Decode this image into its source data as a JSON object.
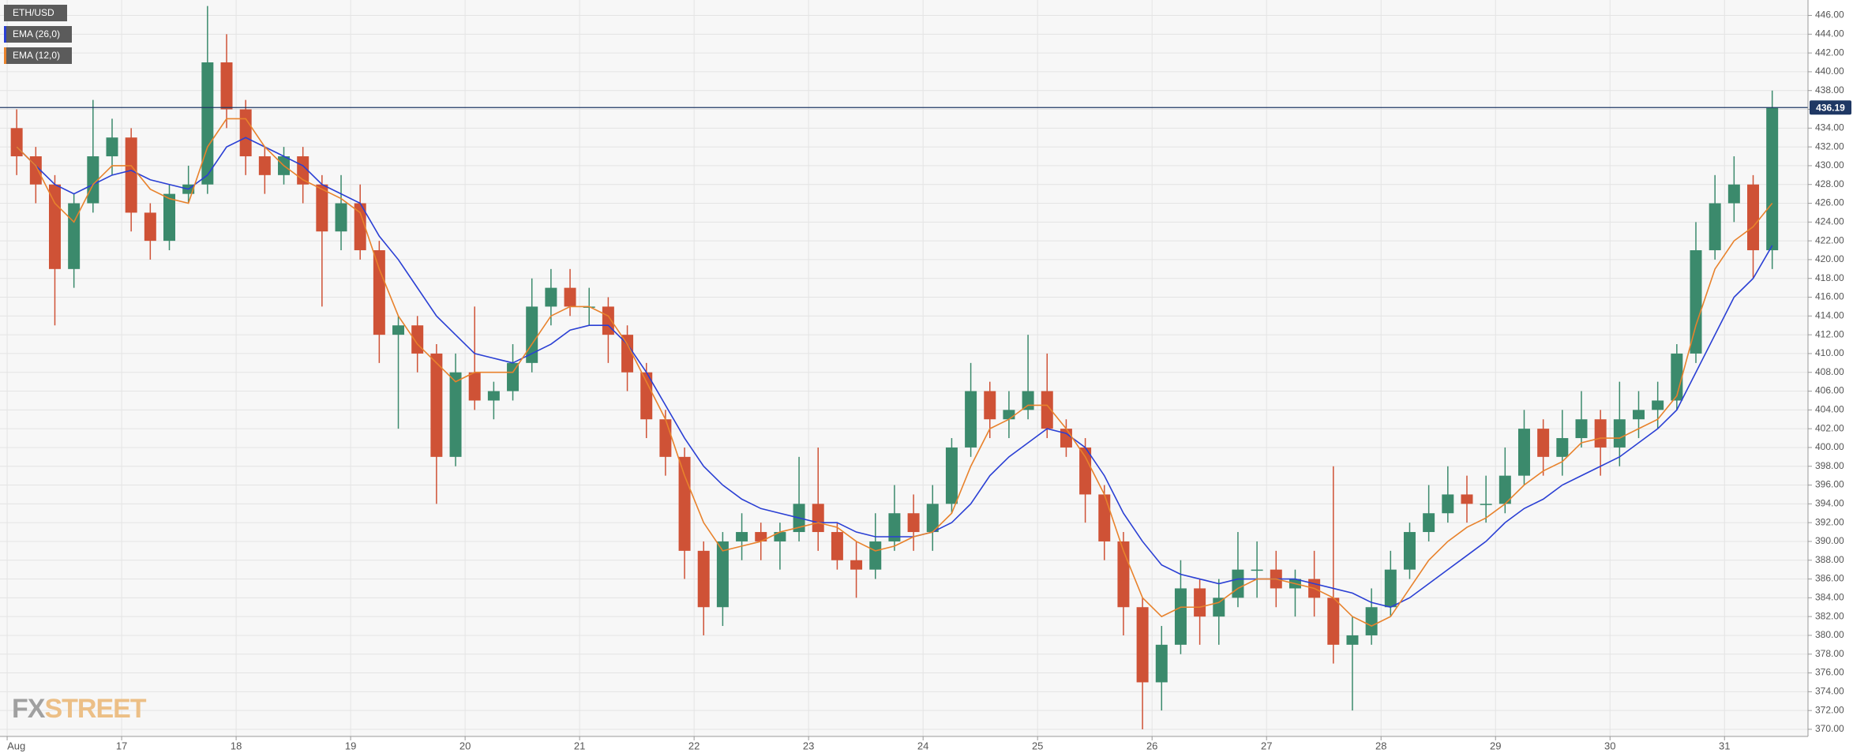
{
  "chart_data": {
    "type": "candlestick",
    "name": "ETH/USD",
    "up_color": "#3b8a6c",
    "down_color": "#cf5236",
    "x": [
      2,
      6,
      10,
      14,
      18,
      22,
      26,
      30,
      34,
      38,
      42,
      46,
      50,
      54,
      58,
      62,
      66,
      70,
      74,
      78,
      82,
      86,
      90,
      94,
      98,
      102,
      106,
      110,
      114,
      118,
      122,
      126,
      130,
      134,
      138,
      142,
      146,
      150,
      154,
      158,
      162,
      166,
      170,
      174,
      178,
      182,
      186,
      190,
      194,
      198,
      202,
      206,
      210,
      214,
      218,
      222,
      226,
      230,
      234,
      238,
      242,
      246,
      250,
      254,
      258,
      262,
      266,
      270,
      274,
      278,
      282,
      286,
      290,
      294,
      298,
      302,
      306,
      310,
      314,
      318,
      322,
      326,
      330,
      334,
      338,
      342,
      346,
      350,
      354,
      358,
      362,
      366,
      370
    ],
    "open": [
      434,
      431,
      428,
      419,
      426,
      431,
      433,
      425,
      422,
      427,
      428,
      441,
      436,
      431,
      429,
      431,
      428,
      423,
      426,
      421,
      412,
      413,
      410,
      399,
      408,
      405,
      406,
      409,
      415,
      417,
      415,
      415,
      412,
      408,
      403,
      399,
      389,
      383,
      390,
      391,
      390,
      391,
      394,
      391,
      388,
      387,
      390,
      393,
      391,
      394,
      400,
      406,
      403,
      404,
      406,
      402,
      400,
      395,
      390,
      383,
      375,
      379,
      385,
      382,
      384,
      387,
      387,
      385,
      386,
      384,
      379,
      380,
      383,
      387,
      391,
      393,
      395,
      394,
      394,
      397,
      402,
      399,
      401,
      403,
      400,
      403,
      404,
      405,
      410,
      421,
      426,
      428,
      421
    ],
    "high": [
      436,
      432,
      429,
      427,
      437,
      435,
      434,
      426,
      428,
      430,
      447,
      444,
      437,
      432,
      432,
      432,
      429,
      429,
      428,
      422,
      414,
      414,
      411,
      410,
      415,
      407,
      411,
      418,
      419,
      419,
      417,
      416,
      413,
      409,
      404,
      400,
      390,
      391,
      393,
      392,
      392,
      399,
      400,
      392,
      390,
      393,
      396,
      395,
      396,
      401,
      409,
      407,
      406,
      412,
      410,
      403,
      401,
      396,
      391,
      384,
      381,
      388,
      386,
      386,
      391,
      390,
      389,
      387,
      389,
      398,
      382,
      385,
      389,
      392,
      396,
      398,
      397,
      397,
      400,
      404,
      403,
      404,
      406,
      404,
      407,
      406,
      407,
      411,
      424,
      429,
      431,
      429,
      438
    ],
    "low": [
      429,
      426,
      413,
      417,
      425,
      429,
      423,
      420,
      421,
      426,
      427,
      434,
      429,
      427,
      428,
      426,
      415,
      421,
      420,
      409,
      402,
      408,
      394,
      398,
      404,
      403,
      405,
      408,
      413,
      414,
      413,
      409,
      406,
      401,
      397,
      386,
      380,
      381,
      388,
      388,
      387,
      390,
      389,
      387,
      384,
      386,
      389,
      389,
      389,
      393,
      399,
      401,
      401,
      403,
      401,
      399,
      392,
      388,
      380,
      370,
      372,
      378,
      379,
      379,
      383,
      384,
      383,
      382,
      382,
      377,
      372,
      379,
      382,
      386,
      390,
      392,
      392,
      392,
      393,
      396,
      397,
      397,
      400,
      397,
      398,
      401,
      402,
      404,
      409,
      420,
      424,
      418,
      419
    ],
    "close": [
      431,
      428,
      419,
      426,
      431,
      433,
      425,
      422,
      427,
      428,
      441,
      436,
      431,
      429,
      431,
      428,
      423,
      426,
      421,
      412,
      413,
      410,
      399,
      408,
      405,
      406,
      409,
      415,
      417,
      415,
      415,
      412,
      408,
      403,
      399,
      389,
      383,
      390,
      391,
      390,
      391,
      394,
      391,
      388,
      387,
      390,
      393,
      391,
      394,
      400,
      406,
      403,
      404,
      406,
      402,
      400,
      395,
      390,
      383,
      375,
      379,
      385,
      382,
      384,
      387,
      387,
      385,
      386,
      384,
      379,
      380,
      383,
      387,
      391,
      393,
      395,
      394,
      394,
      397,
      402,
      399,
      401,
      403,
      400,
      403,
      404,
      405,
      410,
      421,
      426,
      428,
      421,
      436.19
    ],
    "lines": [
      {
        "name": "EMA (26,0)",
        "color": "#2a3fd4",
        "values": [
          432,
          430,
          428,
          427,
          428,
          429,
          429.5,
          428.5,
          428,
          427.5,
          429,
          432,
          433,
          432,
          431,
          430,
          428,
          427,
          426,
          422.5,
          420,
          417,
          414,
          412,
          410,
          409.5,
          409,
          410,
          411,
          412.5,
          413,
          413,
          411,
          408,
          404.5,
          401,
          398,
          396,
          394.5,
          393.5,
          393,
          392.5,
          392,
          392,
          391,
          390.5,
          390.5,
          390.5,
          391,
          392,
          394,
          397,
          399,
          400.5,
          402,
          401.5,
          400,
          397,
          393,
          390,
          387.5,
          386.5,
          386,
          385.5,
          386,
          386,
          386,
          386,
          385.5,
          385,
          384.5,
          383.5,
          383,
          384,
          385.5,
          387,
          388.5,
          390,
          392,
          393.5,
          394.5,
          396,
          397,
          398,
          399,
          400.5,
          402,
          404,
          408,
          412,
          416,
          418,
          421.5
        ]
      },
      {
        "name": "EMA (12,0)",
        "color": "#e8822c",
        "values": [
          432,
          430,
          426,
          424,
          428,
          430,
          430,
          427.5,
          426.5,
          426,
          432,
          435,
          435,
          432,
          430,
          428.5,
          427.5,
          426.5,
          425,
          419,
          414,
          411,
          409,
          407,
          408,
          408,
          408,
          411,
          414,
          415,
          415,
          414,
          411,
          407,
          403,
          397,
          392,
          389,
          389.5,
          390,
          391,
          391.5,
          392,
          391.5,
          390,
          389,
          389.5,
          390.5,
          391,
          393,
          398,
          402,
          403,
          404.5,
          404.5,
          402,
          399,
          395,
          389,
          384,
          382,
          383,
          383,
          383.5,
          385,
          386,
          386,
          385.5,
          385,
          384,
          382,
          381,
          382,
          385,
          388,
          390,
          391.5,
          392.5,
          394,
          396,
          397.5,
          398.5,
          400.5,
          401,
          401,
          402,
          403,
          405.5,
          413,
          419,
          422,
          423.5,
          426
        ]
      }
    ],
    "last_price": 436.19,
    "last_price_color": "#1f3864",
    "xlim": [
      -1.5,
      377.5
    ],
    "xticks": [
      {
        "value": 0,
        "label": "Aug"
      },
      {
        "value": 24,
        "label": "17"
      },
      {
        "value": 48,
        "label": "18"
      },
      {
        "value": 72,
        "label": "19"
      },
      {
        "value": 96,
        "label": "20"
      },
      {
        "value": 120,
        "label": "21"
      },
      {
        "value": 144,
        "label": "22"
      },
      {
        "value": 168,
        "label": "23"
      },
      {
        "value": 192,
        "label": "24"
      },
      {
        "value": 216,
        "label": "25"
      },
      {
        "value": 240,
        "label": "26"
      },
      {
        "value": 264,
        "label": "27"
      },
      {
        "value": 288,
        "label": "28"
      },
      {
        "value": 312,
        "label": "29"
      },
      {
        "value": 336,
        "label": "30"
      },
      {
        "value": 360,
        "label": "31"
      }
    ],
    "ylim": [
      369.24,
      447.64
    ],
    "yticks": [
      {
        "value": 370,
        "label": "370.00"
      },
      {
        "value": 372,
        "label": "372.00"
      },
      {
        "value": 374,
        "label": "374.00"
      },
      {
        "value": 376,
        "label": "376.00"
      },
      {
        "value": 378,
        "label": "378.00"
      },
      {
        "value": 380,
        "label": "380.00"
      },
      {
        "value": 382,
        "label": "382.00"
      },
      {
        "value": 384,
        "label": "384.00"
      },
      {
        "value": 386,
        "label": "386.00"
      },
      {
        "value": 388,
        "label": "388.00"
      },
      {
        "value": 390,
        "label": "390.00"
      },
      {
        "value": 392,
        "label": "392.00"
      },
      {
        "value": 394,
        "label": "394.00"
      },
      {
        "value": 396,
        "label": "396.00"
      },
      {
        "value": 398,
        "label": "398.00"
      },
      {
        "value": 400,
        "label": "400.00"
      },
      {
        "value": 402,
        "label": "402.00"
      },
      {
        "value": 404,
        "label": "404.00"
      },
      {
        "value": 406,
        "label": "406.00"
      },
      {
        "value": 408,
        "label": "408.00"
      },
      {
        "value": 410,
        "label": "410.00"
      },
      {
        "value": 412,
        "label": "412.00"
      },
      {
        "value": 414,
        "label": "414.00"
      },
      {
        "value": 416,
        "label": "416.00"
      },
      {
        "value": 418,
        "label": "418.00"
      },
      {
        "value": 420,
        "label": "420.00"
      },
      {
        "value": 422,
        "label": "422.00"
      },
      {
        "value": 424,
        "label": "424.00"
      },
      {
        "value": 426,
        "label": "426.00"
      },
      {
        "value": 428,
        "label": "428.00"
      },
      {
        "value": 430,
        "label": "430.00"
      },
      {
        "value": 432,
        "label": "432.00"
      },
      {
        "value": 434,
        "label": "434.00"
      },
      {
        "value": 436,
        "label": "436.00"
      },
      {
        "value": 438,
        "label": "438.00"
      },
      {
        "value": 440,
        "label": "440.00"
      },
      {
        "value": 442,
        "label": "442.00"
      },
      {
        "value": 444,
        "label": "444.00"
      },
      {
        "value": 446,
        "label": "446.00"
      }
    ],
    "grid": true,
    "watermark": {
      "prefix": "FX",
      "text": "STREET"
    }
  }
}
